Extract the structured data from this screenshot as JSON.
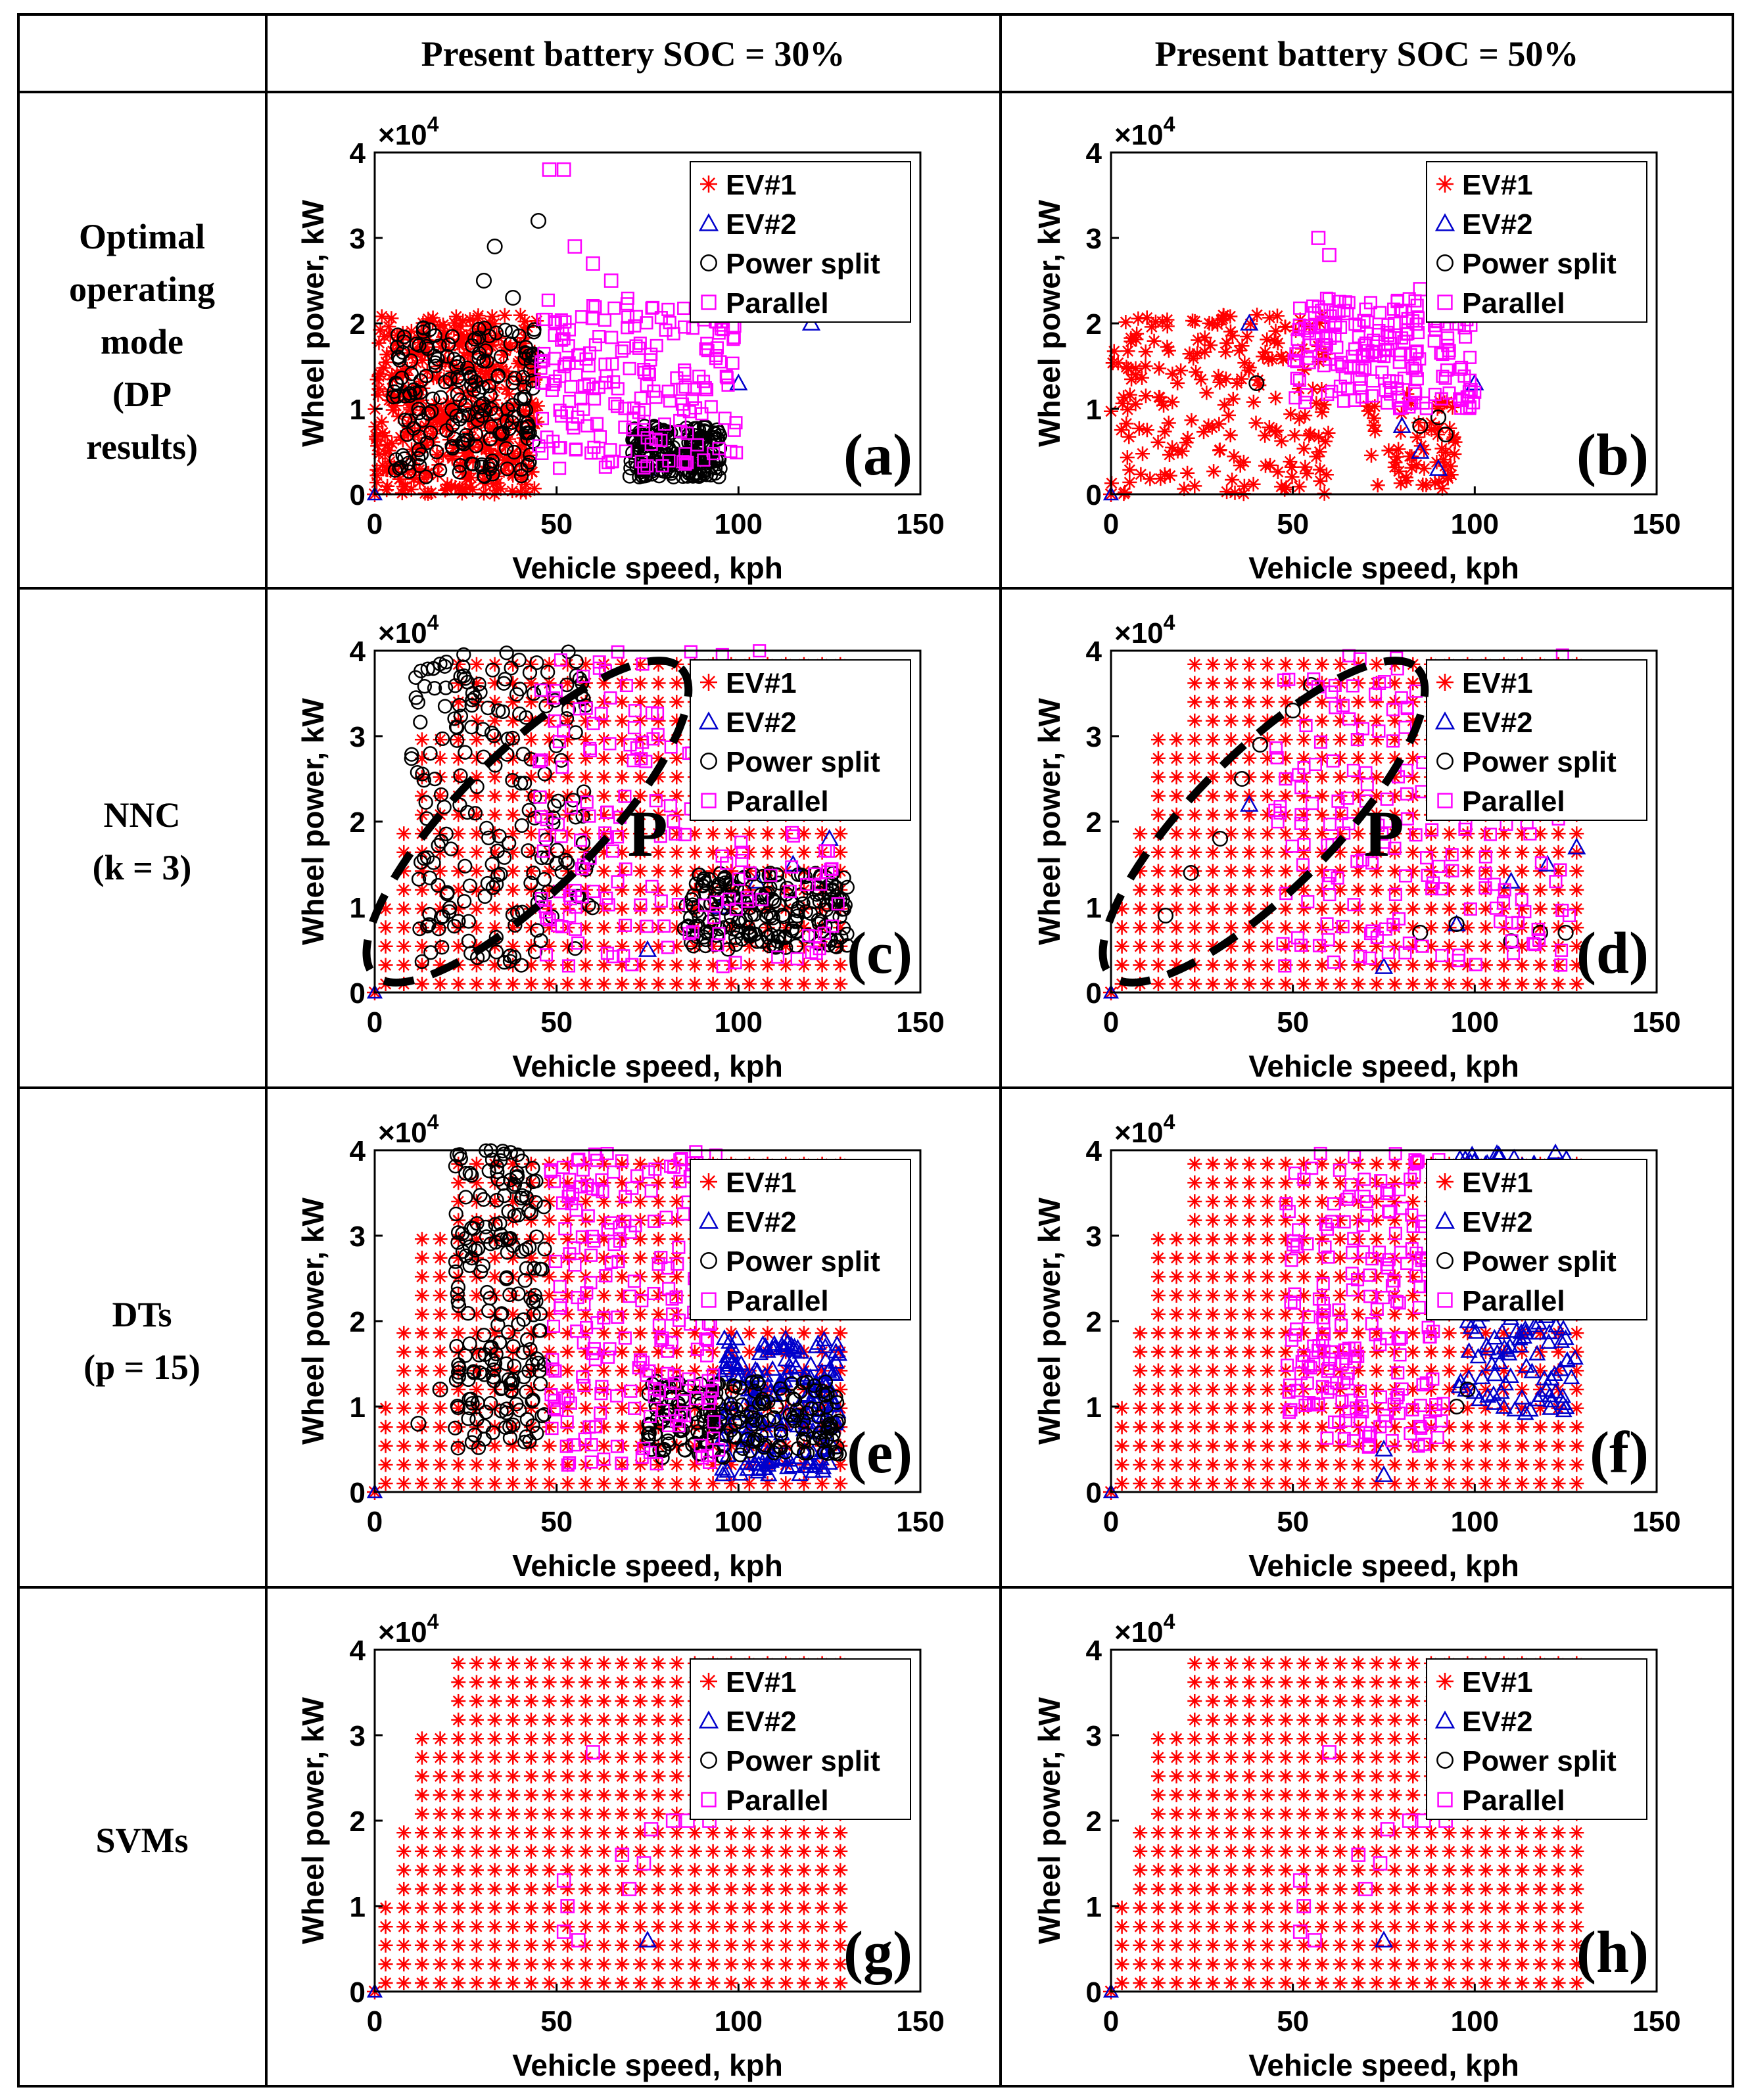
{
  "table": {
    "col_headers": [
      "Present battery SOC = 30%",
      "Present battery SOC = 50%"
    ],
    "rows": [
      {
        "label_lines": [
          "Optimal",
          "operating",
          "mode",
          "(DP",
          "results)"
        ]
      },
      {
        "label_lines": [
          "NNC",
          "(k = 3)"
        ]
      },
      {
        "label_lines": [
          "DTs",
          "(p = 15)"
        ]
      },
      {
        "label_lines": [
          "SVMs"
        ]
      }
    ]
  },
  "colors": {
    "ev1": "#ff0000",
    "ev2": "#0000cc",
    "power_split": "#000000",
    "parallel": "#ff00ff"
  },
  "annotation_label": "P",
  "chart_data": [
    {
      "id": "a",
      "type": "scatter",
      "panel_label": "(a)",
      "xlabel": "Vehicle speed, kph",
      "ylabel": "Wheel power, kW",
      "xlim": [
        0,
        150
      ],
      "ylim": [
        0,
        4
      ],
      "xticks": [
        0,
        50,
        100,
        150
      ],
      "yticks": [
        0,
        1,
        2,
        3,
        4
      ],
      "y_multiplier": "×10",
      "y_multiplier_exp": "4",
      "legend": [
        "EV#1",
        "EV#2",
        "Power split",
        "Parallel"
      ],
      "legend_loc": "top-right",
      "series": [
        {
          "name": "EV#1",
          "marker": "asterisk",
          "regions": [
            {
              "x": [
                0,
                45
              ],
              "y": [
                0,
                2.1
              ],
              "density": "high"
            }
          ]
        },
        {
          "name": "EV#2",
          "marker": "triangle",
          "points": [
            [
              100,
              1.3
            ],
            [
              120,
              2.0
            ],
            [
              75,
              0.3
            ]
          ]
        },
        {
          "name": "Power split",
          "marker": "circle",
          "regions": [
            {
              "x": [
                5,
                45
              ],
              "y": [
                0.2,
                2.0
              ]
            },
            {
              "x": [
                70,
                95
              ],
              "y": [
                0.2,
                0.8
              ]
            }
          ],
          "points": [
            [
              30,
              2.5
            ],
            [
              33,
              2.9
            ],
            [
              45,
              3.2
            ],
            [
              38,
              2.3
            ]
          ]
        },
        {
          "name": "Parallel",
          "marker": "square",
          "regions": [
            {
              "x": [
                45,
                100
              ],
              "y": [
                0.3,
                2.3
              ]
            }
          ],
          "points": [
            [
              48,
              3.8
            ],
            [
              52,
              3.8
            ],
            [
              55,
              2.9
            ],
            [
              60,
              2.7
            ],
            [
              65,
              2.5
            ]
          ]
        }
      ]
    },
    {
      "id": "b",
      "type": "scatter",
      "panel_label": "(b)",
      "xlabel": "Vehicle speed, kph",
      "ylabel": "Wheel power, kW",
      "xlim": [
        0,
        150
      ],
      "ylim": [
        0,
        4
      ],
      "xticks": [
        0,
        50,
        100,
        150
      ],
      "yticks": [
        0,
        1,
        2,
        3,
        4
      ],
      "y_multiplier": "×10",
      "y_multiplier_exp": "4",
      "legend": [
        "EV#1",
        "EV#2",
        "Power split",
        "Parallel"
      ],
      "legend_loc": "top-right",
      "series": [
        {
          "name": "EV#1",
          "marker": "asterisk",
          "regions": [
            {
              "x": [
                0,
                60
              ],
              "y": [
                0,
                2.1
              ],
              "density": "medium"
            },
            {
              "x": [
                70,
                95
              ],
              "y": [
                0,
                1.2
              ],
              "density": "low"
            }
          ]
        },
        {
          "name": "EV#2",
          "marker": "triangle",
          "points": [
            [
              38,
              2.0
            ],
            [
              85,
              0.5
            ],
            [
              90,
              0.3
            ],
            [
              100,
              1.3
            ],
            [
              80,
              0.8
            ]
          ]
        },
        {
          "name": "Power split",
          "marker": "circle",
          "points": [
            [
              40,
              1.3
            ],
            [
              85,
              0.8
            ],
            [
              90,
              0.9
            ],
            [
              92,
              0.7
            ]
          ]
        },
        {
          "name": "Parallel",
          "marker": "square",
          "regions": [
            {
              "x": [
                50,
                100
              ],
              "y": [
                1.0,
                2.3
              ]
            }
          ],
          "points": [
            [
              57,
              3.0
            ],
            [
              60,
              2.8
            ],
            [
              85,
              2.4
            ],
            [
              95,
              2.0
            ]
          ]
        }
      ]
    },
    {
      "id": "c",
      "type": "scatter",
      "panel_label": "(c)",
      "xlabel": "Vehicle speed, kph",
      "ylabel": "Wheel power, kW",
      "xlim": [
        0,
        150
      ],
      "ylim": [
        0,
        4
      ],
      "xticks": [
        0,
        50,
        100,
        150
      ],
      "yticks": [
        0,
        1,
        2,
        3,
        4
      ],
      "y_multiplier": "×10",
      "y_multiplier_exp": "4",
      "legend": [
        "EV#1",
        "EV#2",
        "Power split",
        "Parallel"
      ],
      "legend_loc": "top-right",
      "series": [
        {
          "name": "EV#1",
          "marker": "asterisk",
          "regions": [
            {
              "x": [
                0,
                130
              ],
              "y": [
                0,
                4.0
              ],
              "density": "grid"
            }
          ]
        },
        {
          "name": "EV#2",
          "marker": "triangle",
          "points": [
            [
              75,
              0.5
            ],
            [
              95,
              1.0
            ],
            [
              105,
              1.3
            ],
            [
              115,
              1.5
            ],
            [
              125,
              1.8
            ]
          ]
        },
        {
          "name": "Power split",
          "marker": "circle",
          "regions": [
            {
              "x": [
                10,
                60
              ],
              "y": [
                0.3,
                4.0
              ]
            },
            {
              "x": [
                85,
                130
              ],
              "y": [
                0.5,
                1.4
              ]
            }
          ]
        },
        {
          "name": "Parallel",
          "marker": "square",
          "regions": [
            {
              "x": [
                45,
                128
              ],
              "y": [
                0.3,
                4.0
              ]
            }
          ]
        }
      ]
    },
    {
      "id": "d",
      "type": "scatter",
      "panel_label": "(d)",
      "xlabel": "Vehicle speed, kph",
      "ylabel": "Wheel power, kW",
      "xlim": [
        0,
        150
      ],
      "ylim": [
        0,
        4
      ],
      "xticks": [
        0,
        50,
        100,
        150
      ],
      "yticks": [
        0,
        1,
        2,
        3,
        4
      ],
      "y_multiplier": "×10",
      "y_multiplier_exp": "4",
      "legend": [
        "EV#1",
        "EV#2",
        "Power split",
        "Parallel"
      ],
      "legend_loc": "top-right",
      "series": [
        {
          "name": "EV#1",
          "marker": "asterisk",
          "regions": [
            {
              "x": [
                0,
                130
              ],
              "y": [
                0,
                4.0
              ],
              "density": "grid"
            }
          ]
        },
        {
          "name": "EV#2",
          "marker": "triangle",
          "points": [
            [
              38,
              2.2
            ],
            [
              75,
              0.3
            ],
            [
              95,
              0.8
            ],
            [
              110,
              1.3
            ],
            [
              120,
              1.5
            ],
            [
              128,
              1.7
            ]
          ]
        },
        {
          "name": "Power split",
          "marker": "circle",
          "points": [
            [
              15,
              0.9
            ],
            [
              22,
              1.4
            ],
            [
              30,
              1.8
            ],
            [
              36,
              2.5
            ],
            [
              41,
              2.9
            ],
            [
              50,
              3.3
            ],
            [
              55,
              3.6
            ],
            [
              85,
              0.7
            ],
            [
              95,
              0.8
            ],
            [
              110,
              0.6
            ],
            [
              118,
              0.7
            ],
            [
              125,
              0.7
            ]
          ]
        },
        {
          "name": "Parallel",
          "marker": "square",
          "regions": [
            {
              "x": [
                45,
                128
              ],
              "y": [
                0.3,
                4.0
              ]
            }
          ]
        }
      ]
    },
    {
      "id": "e",
      "type": "scatter",
      "panel_label": "(e)",
      "xlabel": "Vehicle speed, kph",
      "ylabel": "Wheel power, kW",
      "xlim": [
        0,
        150
      ],
      "ylim": [
        0,
        4
      ],
      "xticks": [
        0,
        50,
        100,
        150
      ],
      "yticks": [
        0,
        1,
        2,
        3,
        4
      ],
      "y_multiplier": "×10",
      "y_multiplier_exp": "4",
      "legend": [
        "EV#1",
        "EV#2",
        "Power split",
        "Parallel"
      ],
      "legend_loc": "top-right",
      "series": [
        {
          "name": "EV#1",
          "marker": "asterisk",
          "regions": [
            {
              "x": [
                0,
                130
              ],
              "y": [
                0,
                4.0
              ],
              "density": "grid"
            }
          ]
        },
        {
          "name": "EV#2",
          "marker": "triangle",
          "regions": [
            {
              "x": [
                95,
                128
              ],
              "y": [
                0.2,
                1.8
              ]
            }
          ]
        },
        {
          "name": "Power split",
          "marker": "circle",
          "regions": [
            {
              "x": [
                22,
                47
              ],
              "y": [
                0.5,
                4.0
              ]
            },
            {
              "x": [
                75,
                128
              ],
              "y": [
                0.4,
                1.3
              ]
            }
          ],
          "points": [
            [
              12,
              0.8
            ],
            [
              18,
              1.2
            ]
          ]
        },
        {
          "name": "Parallel",
          "marker": "square",
          "regions": [
            {
              "x": [
                48,
                95
              ],
              "y": [
                0.3,
                4.0
              ]
            }
          ]
        }
      ]
    },
    {
      "id": "f",
      "type": "scatter",
      "panel_label": "(f)",
      "xlabel": "Vehicle speed, kph",
      "ylabel": "Wheel power, kW",
      "xlim": [
        0,
        150
      ],
      "ylim": [
        0,
        4
      ],
      "xticks": [
        0,
        50,
        100,
        150
      ],
      "yticks": [
        0,
        1,
        2,
        3,
        4
      ],
      "y_multiplier": "×10",
      "y_multiplier_exp": "4",
      "legend": [
        "EV#1",
        "EV#2",
        "Power split",
        "Parallel"
      ],
      "legend_loc": "top-right",
      "series": [
        {
          "name": "EV#1",
          "marker": "asterisk",
          "regions": [
            {
              "x": [
                0,
                130
              ],
              "y": [
                0,
                4.0
              ],
              "density": "grid"
            }
          ]
        },
        {
          "name": "EV#2",
          "marker": "triangle",
          "regions": [
            {
              "x": [
                95,
                128
              ],
              "y": [
                0.9,
                4.0
              ]
            }
          ],
          "points": [
            [
              75,
              0.2
            ],
            [
              75,
              0.5
            ]
          ]
        },
        {
          "name": "Power split",
          "marker": "circle",
          "points": [
            [
              95,
              1.0
            ],
            [
              98,
              1.2
            ]
          ]
        },
        {
          "name": "Parallel",
          "marker": "square",
          "regions": [
            {
              "x": [
                48,
                92
              ],
              "y": [
                0.5,
                4.0
              ]
            }
          ]
        }
      ]
    },
    {
      "id": "g",
      "type": "scatter",
      "panel_label": "(g)",
      "xlabel": "Vehicle speed, kph",
      "ylabel": "Wheel power, kW",
      "xlim": [
        0,
        150
      ],
      "ylim": [
        0,
        4
      ],
      "xticks": [
        0,
        50,
        100,
        150
      ],
      "yticks": [
        0,
        1,
        2,
        3,
        4
      ],
      "y_multiplier": "×10",
      "y_multiplier_exp": "4",
      "legend": [
        "EV#1",
        "EV#2",
        "Power split",
        "Parallel"
      ],
      "legend_loc": "top-right",
      "series": [
        {
          "name": "EV#1",
          "marker": "asterisk",
          "regions": [
            {
              "x": [
                0,
                130
              ],
              "y": [
                0,
                4.0
              ],
              "density": "grid"
            }
          ]
        },
        {
          "name": "EV#2",
          "marker": "triangle",
          "points": [
            [
              75,
              0.6
            ]
          ]
        },
        {
          "name": "Power split",
          "marker": "circle",
          "points": []
        },
        {
          "name": "Parallel",
          "marker": "square",
          "points": [
            [
              52,
              1.3
            ],
            [
              53,
              1.0
            ],
            [
              52,
              0.7
            ],
            [
              56,
              0.6
            ],
            [
              60,
              2.8
            ],
            [
              68,
              1.6
            ],
            [
              70,
              1.2
            ],
            [
              74,
              1.5
            ],
            [
              76,
              1.9
            ],
            [
              82,
              2.0
            ],
            [
              86,
              2.0
            ],
            [
              92,
              2.0
            ]
          ]
        }
      ]
    },
    {
      "id": "h",
      "type": "scatter",
      "panel_label": "(h)",
      "xlabel": "Vehicle speed, kph",
      "ylabel": "Wheel power, kW",
      "xlim": [
        0,
        150
      ],
      "ylim": [
        0,
        4
      ],
      "xticks": [
        0,
        50,
        100,
        150
      ],
      "yticks": [
        0,
        1,
        2,
        3,
        4
      ],
      "y_multiplier": "×10",
      "y_multiplier_exp": "4",
      "legend": [
        "EV#1",
        "EV#2",
        "Power split",
        "Parallel"
      ],
      "legend_loc": "top-right",
      "series": [
        {
          "name": "EV#1",
          "marker": "asterisk",
          "regions": [
            {
              "x": [
                0,
                130
              ],
              "y": [
                0,
                4.0
              ],
              "density": "grid"
            }
          ]
        },
        {
          "name": "EV#2",
          "marker": "triangle",
          "points": [
            [
              75,
              0.6
            ]
          ]
        },
        {
          "name": "Power split",
          "marker": "circle",
          "points": []
        },
        {
          "name": "Parallel",
          "marker": "square",
          "points": [
            [
              52,
              1.3
            ],
            [
              53,
              1.0
            ],
            [
              52,
              0.7
            ],
            [
              56,
              0.6
            ],
            [
              60,
              2.8
            ],
            [
              68,
              1.6
            ],
            [
              70,
              1.2
            ],
            [
              74,
              1.5
            ],
            [
              76,
              1.9
            ],
            [
              82,
              2.0
            ],
            [
              86,
              2.0
            ],
            [
              92,
              2.0
            ]
          ]
        }
      ]
    }
  ]
}
